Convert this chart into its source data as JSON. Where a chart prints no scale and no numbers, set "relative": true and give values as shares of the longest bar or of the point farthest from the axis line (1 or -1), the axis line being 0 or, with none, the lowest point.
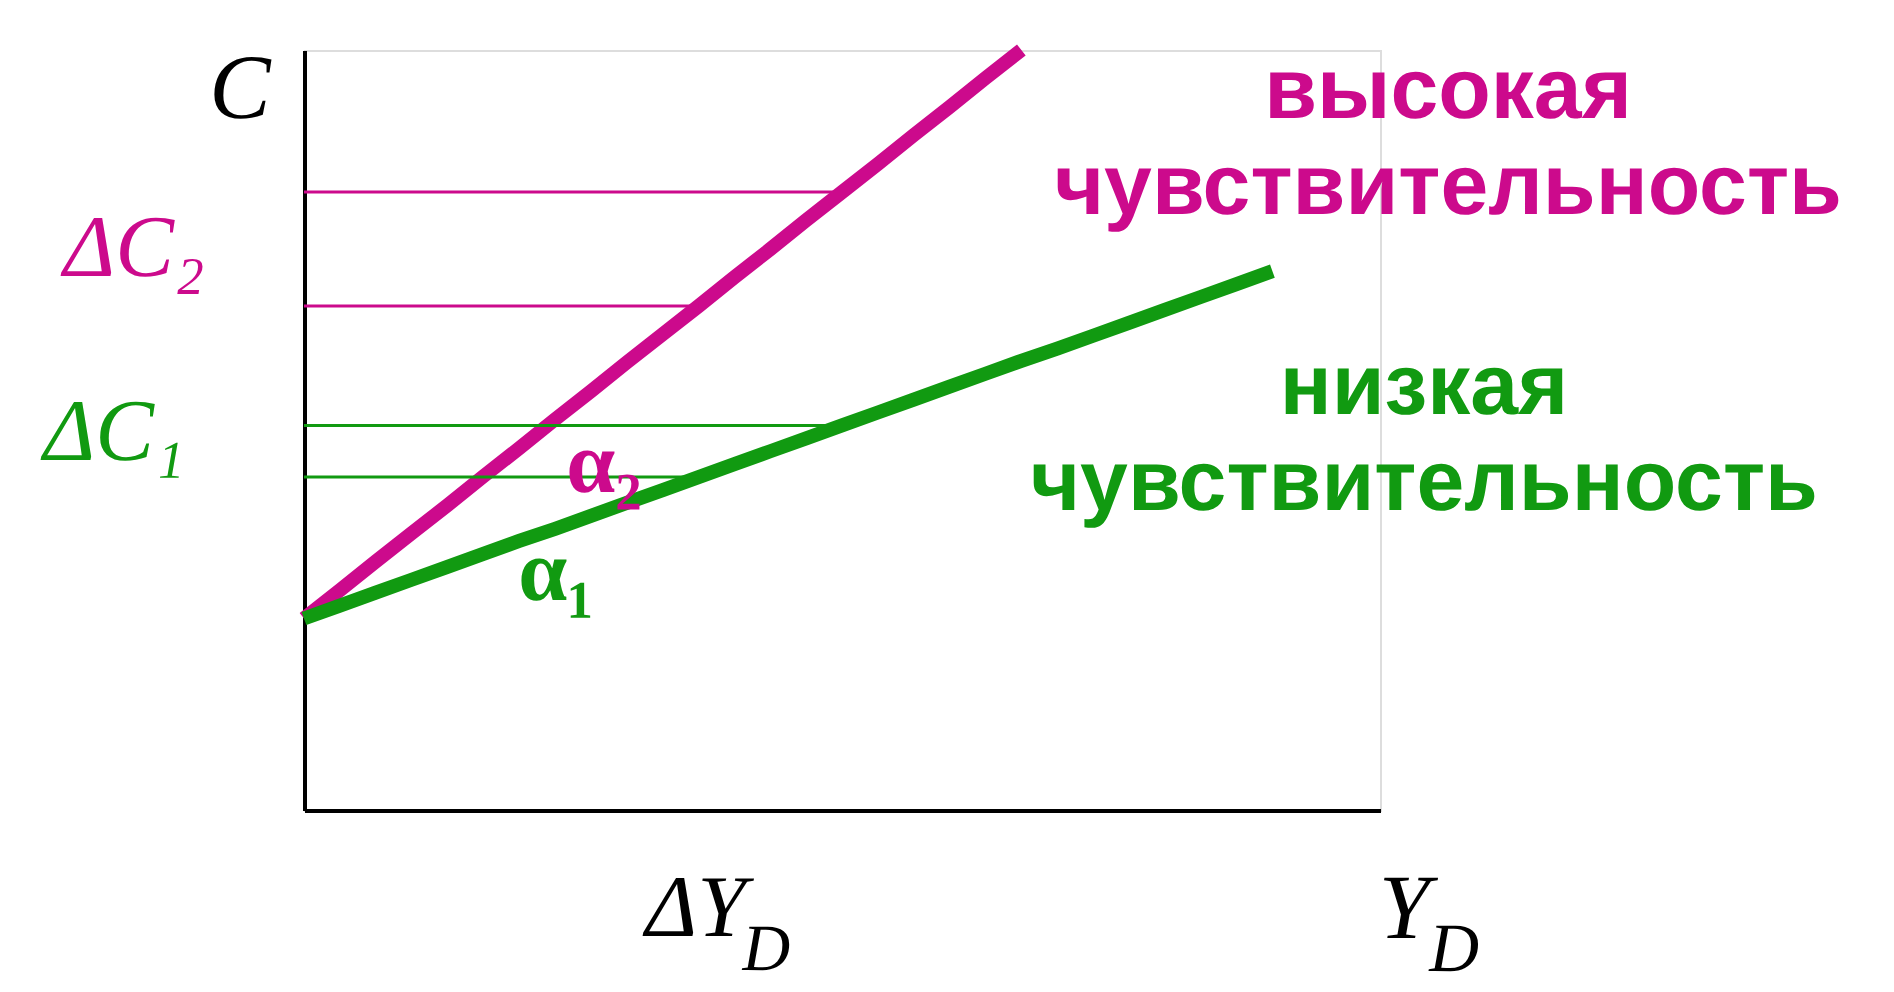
{
  "chart_data": {
    "type": "line",
    "relative": true,
    "xlabel": "Y$_{D}$",
    "ylabel": "C",
    "grid": false,
    "marker": "none",
    "line_style": "solid",
    "ylim": [
      0,
      1.0
    ],
    "categories": [
      null,
      null,
      null,
      null,
      null,
      null,
      null,
      null,
      null,
      null,
      null,
      null,
      null,
      null,
      null,
      null,
      null,
      null,
      null,
      null,
      null,
      null,
      null,
      null,
      null,
      null,
      null,
      null,
      null,
      null,
      null
    ],
    "annotations": [
      "ΔC₂",
      "ΔC₁",
      "α₂",
      "α₁",
      "ΔY$_{D}$"
    ],
    "series": [
      {
        "name": "высокая чувствительность",
        "color": "#cc0a8c",
        "values": [
          0.252,
          0.289,
          0.327,
          0.364,
          0.401,
          0.439,
          0.476,
          0.514,
          0.551,
          0.589,
          0.626,
          0.663,
          0.701,
          0.738,
          0.776,
          0.813,
          0.85,
          0.888,
          0.925,
          0.963,
          1.0,
          null,
          null,
          null,
          null,
          null,
          null,
          null,
          null,
          null,
          null
        ]
      },
      {
        "name": "низкая чувствительность",
        "color": "#119a11",
        "values": [
          0.252,
          0.269,
          0.286,
          0.303,
          0.32,
          0.337,
          0.354,
          0.37,
          0.387,
          0.404,
          0.421,
          0.438,
          0.455,
          0.472,
          0.489,
          0.506,
          0.523,
          0.54,
          0.557,
          0.574,
          0.591,
          0.607,
          0.624,
          0.641,
          0.658,
          0.675,
          0.692,
          0.709,
          null,
          null,
          null
        ]
      },
      {
        "color": "#cc0a8c",
        "values": [
          0.663,
          0.663,
          0.663,
          0.663,
          0.663,
          0.663,
          0.663,
          0.663,
          0.663,
          0.663,
          0.663,
          0.663,
          null,
          null,
          null,
          null,
          null,
          null,
          null,
          null,
          null,
          null,
          null,
          null,
          null,
          null,
          null,
          null,
          null,
          null,
          null
        ]
      },
      {
        "color": "#cc0a8c",
        "values": [
          0.813,
          0.813,
          0.813,
          0.813,
          0.813,
          0.813,
          0.813,
          0.813,
          0.813,
          0.813,
          0.813,
          0.813,
          0.813,
          0.813,
          0.813,
          0.813,
          null,
          null,
          null,
          null,
          null,
          null,
          null,
          null,
          null,
          null,
          null,
          null,
          null,
          null,
          null
        ]
      },
      {
        "color": "#119a11",
        "values": [
          0.438,
          0.438,
          0.438,
          0.438,
          0.438,
          0.438,
          0.438,
          0.438,
          0.438,
          0.438,
          0.438,
          0.438,
          null,
          null,
          null,
          null,
          null,
          null,
          null,
          null,
          null,
          null,
          null,
          null,
          null,
          null,
          null,
          null,
          null,
          null,
          null
        ]
      },
      {
        "color": "#119a11",
        "values": [
          0.506,
          0.506,
          0.506,
          0.506,
          0.506,
          0.506,
          0.506,
          0.506,
          0.506,
          0.506,
          0.506,
          0.506,
          0.506,
          0.506,
          0.506,
          0.506,
          null,
          null,
          null,
          null,
          null,
          null,
          null,
          null,
          null,
          null,
          null,
          null,
          null,
          null,
          null
        ]
      }
    ]
  }
}
